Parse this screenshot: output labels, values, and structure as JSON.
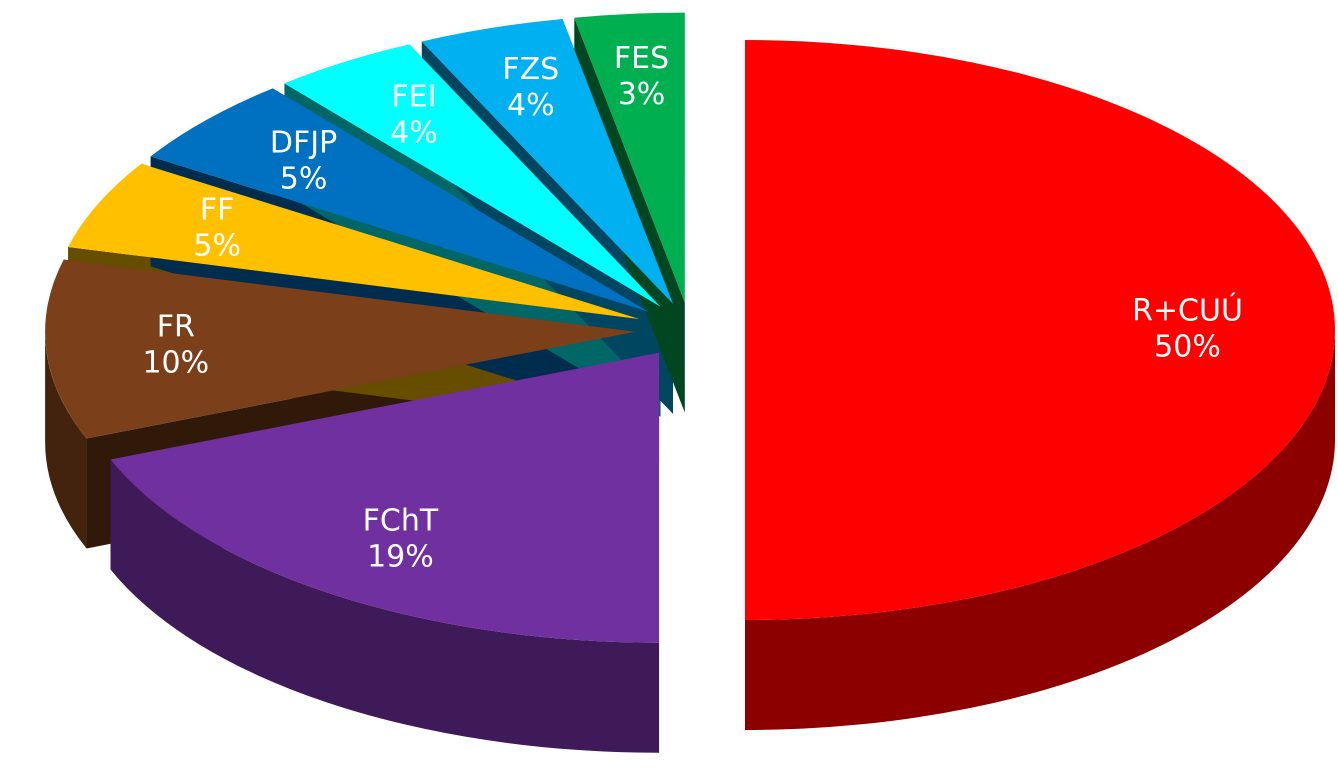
{
  "chart_data": {
    "type": "pie",
    "categories": [
      "R+CUÚ",
      "FChT",
      "FR",
      "FF",
      "DFJP",
      "FEI",
      "FZS",
      "FES"
    ],
    "values": [
      50,
      19,
      10,
      5,
      5,
      4,
      4,
      3
    ],
    "value_labels": [
      "50%",
      "19%",
      "10%",
      "5%",
      "5%",
      "4%",
      "4%",
      "3%"
    ],
    "colors": [
      "#ff0000",
      "#7030a0",
      "#7b3f1a",
      "#ffc000",
      "#0070c0",
      "#00ffff",
      "#00b0f0",
      "#00b050"
    ]
  }
}
